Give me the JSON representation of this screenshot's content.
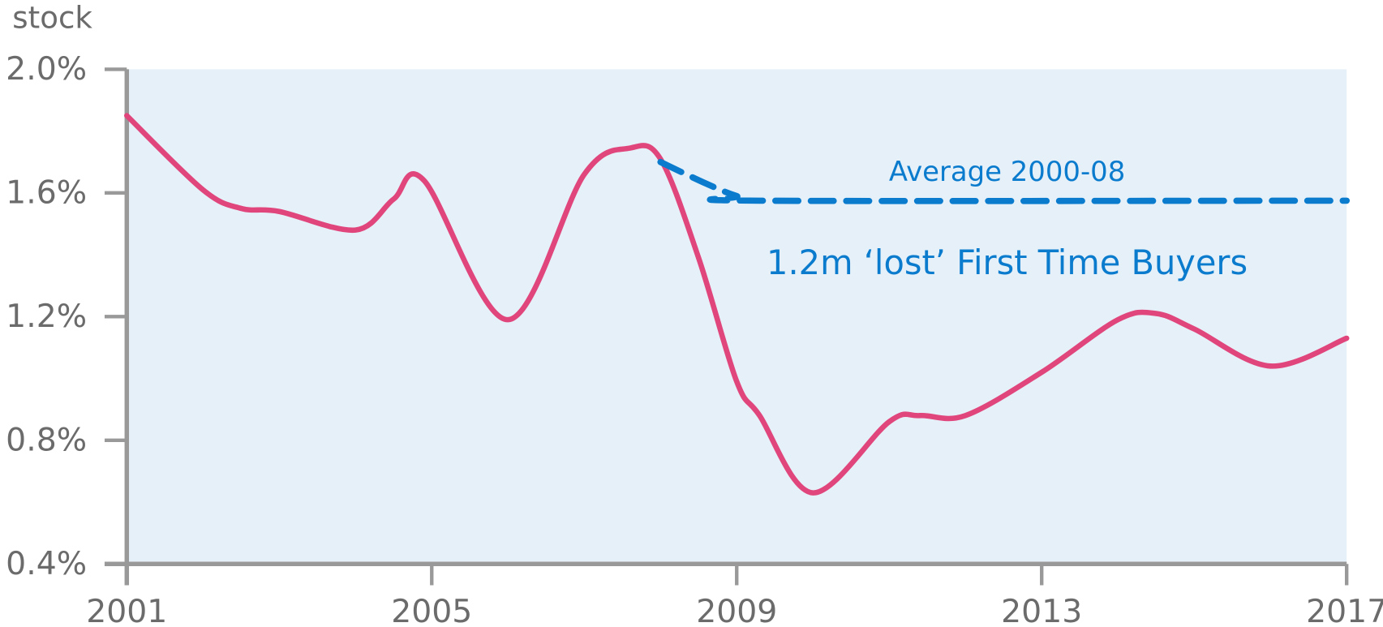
{
  "chart_data": {
    "type": "line",
    "y_axis_label": "stock",
    "annotations": [
      "1.2m ‘lost’ First Time Buyers"
    ],
    "xlim": [
      2001,
      2017
    ],
    "xticks": [
      2001,
      2005,
      2009,
      2013,
      2017
    ],
    "ylim": [
      0.4,
      2.0
    ],
    "yticks": [
      {
        "value": 0.4,
        "label": "0.4%"
      },
      {
        "value": 0.8,
        "label": "0.8%"
      },
      {
        "value": 1.2,
        "label": "1.2%"
      },
      {
        "value": 1.6,
        "label": "1.6%"
      },
      {
        "value": 2.0,
        "label": "2.0%"
      }
    ],
    "background": "#e6f0f9",
    "series": [
      {
        "color": "#e0457b",
        "dash": false,
        "x": [
          2001,
          2002,
          2002.5,
          2003,
          2004,
          2004.5,
          2004.9,
          2006,
          2007,
          2007.6,
          2008,
          2008.5,
          2009,
          2009.3,
          2010,
          2011,
          2011.4,
          2012,
          2013,
          2014,
          2014.5,
          2015,
          2016,
          2017
        ],
        "values": [
          1.85,
          1.61,
          1.55,
          1.54,
          1.48,
          1.58,
          1.64,
          1.19,
          1.66,
          1.745,
          1.71,
          1.39,
          0.99,
          0.88,
          0.63,
          0.86,
          0.88,
          0.88,
          1.02,
          1.19,
          1.21,
          1.16,
          1.04,
          1.13
        ]
      },
      {
        "name": "Average 2000-08",
        "color": "#0a7bcd",
        "dash": true,
        "x": [
          2008,
          2008.6,
          2009,
          2009.3,
          2017
        ],
        "values": [
          1.7,
          1.63,
          1.59,
          1.575,
          1.575
        ]
      }
    ]
  }
}
